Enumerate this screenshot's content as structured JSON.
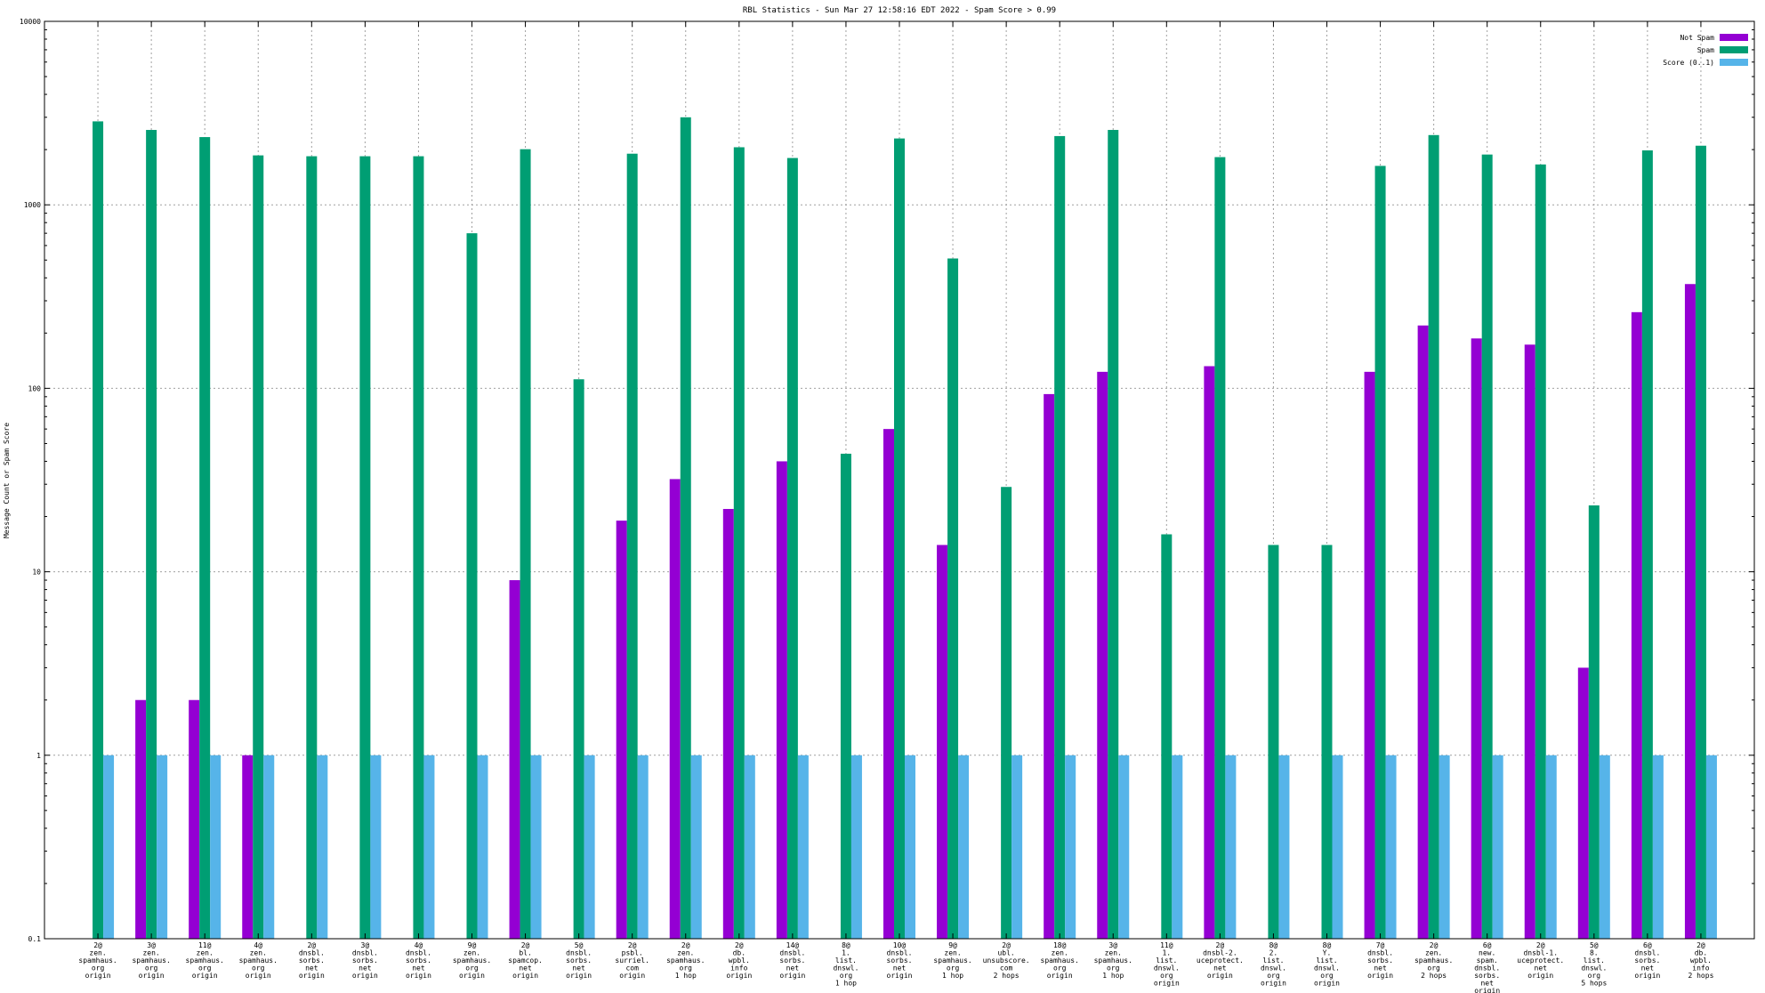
{
  "chart_data": {
    "type": "bar",
    "title": "RBL Statistics - Sun Mar 27 12:58:16 EDT 2022 - Spam Score > 0.99",
    "xlabel": "",
    "ylabel": "Message Count or Spam Score",
    "y_scale": "log",
    "ylim": [
      0.1,
      10000
    ],
    "y_ticks": [
      "0.1",
      "1",
      "10",
      "100",
      "1000",
      "10000"
    ],
    "grid": true,
    "legend_position": "top-right",
    "categories": [
      [
        "2@",
        "zen.",
        "spamhaus.",
        "org",
        "origin"
      ],
      [
        "3@",
        "zen.",
        "spamhaus.",
        "org",
        "origin"
      ],
      [
        "11@",
        "zen.",
        "spamhaus.",
        "org",
        "origin"
      ],
      [
        "4@",
        "zen.",
        "spamhaus.",
        "org",
        "origin"
      ],
      [
        "2@",
        "dnsbl.",
        "sorbs.",
        "net",
        "origin"
      ],
      [
        "3@",
        "dnsbl.",
        "sorbs.",
        "net",
        "origin"
      ],
      [
        "4@",
        "dnsbl.",
        "sorbs.",
        "net",
        "origin"
      ],
      [
        "9@",
        "zen.",
        "spamhaus.",
        "org",
        "origin"
      ],
      [
        "2@",
        "bl.",
        "spamcop.",
        "net",
        "origin"
      ],
      [
        "5@",
        "dnsbl.",
        "sorbs.",
        "net",
        "origin"
      ],
      [
        "2@",
        "psbl.",
        "surriel.",
        "com",
        "origin"
      ],
      [
        "2@",
        "zen.",
        "spamhaus.",
        "org",
        "1 hop"
      ],
      [
        "2@",
        "db.",
        "wpbl.",
        "info",
        "origin"
      ],
      [
        "14@",
        "dnsbl.",
        "sorbs.",
        "net",
        "origin"
      ],
      [
        "8@",
        "1.",
        "list.",
        "dnswl.",
        "org",
        "1 hop"
      ],
      [
        "10@",
        "dnsbl.",
        "sorbs.",
        "net",
        "origin"
      ],
      [
        "9@",
        "zen.",
        "spamhaus.",
        "org",
        "1 hop"
      ],
      [
        "2@",
        "ubl.",
        "unsubscore.",
        "com",
        "2 hops"
      ],
      [
        "18@",
        "zen.",
        "spamhaus.",
        "org",
        "origin"
      ],
      [
        "3@",
        "zen.",
        "spamhaus.",
        "org",
        "1 hop"
      ],
      [
        "11@",
        "1.",
        "list.",
        "dnswl.",
        "org",
        "origin"
      ],
      [
        "2@",
        "dnsbl-2.",
        "uceprotect.",
        "net",
        "origin"
      ],
      [
        "8@",
        "2.",
        "list.",
        "dnswl.",
        "org",
        "origin"
      ],
      [
        "8@",
        "Y.",
        "list.",
        "dnswl.",
        "org",
        "origin"
      ],
      [
        "7@",
        "dnsbl.",
        "sorbs.",
        "net",
        "origin"
      ],
      [
        "2@",
        "zen.",
        "spamhaus.",
        "org",
        "2 hops"
      ],
      [
        "6@",
        "new.",
        "spam.",
        "dnsbl.",
        "sorbs.",
        "net",
        "origin"
      ],
      [
        "2@",
        "dnsbl-1.",
        "uceprotect.",
        "net",
        "origin"
      ],
      [
        "5@",
        "8.",
        "list.",
        "dnswl.",
        "org",
        "5 hops"
      ],
      [
        "6@",
        "dnsbl.",
        "sorbs.",
        "net",
        "origin"
      ],
      [
        "2@",
        "db.",
        "wpbl.",
        "info",
        "2 hops"
      ]
    ],
    "series": [
      {
        "name": "Not Spam",
        "color": "#9400d3",
        "values": [
          0,
          2,
          2,
          1,
          0,
          0,
          0,
          0,
          9,
          0,
          19,
          32,
          22,
          40,
          0,
          60,
          14,
          0,
          93,
          123,
          0,
          132,
          0,
          0,
          123,
          220,
          187,
          173,
          3,
          260,
          370
        ]
      },
      {
        "name": "Spam",
        "color": "#009e73",
        "values": [
          2850,
          2560,
          2340,
          1860,
          1840,
          1840,
          1840,
          700,
          2010,
          112,
          1900,
          3000,
          2060,
          1800,
          44,
          2300,
          510,
          29,
          2370,
          2560,
          16,
          1820,
          14,
          14,
          1630,
          2400,
          1880,
          1660,
          23,
          1980,
          2100
        ]
      },
      {
        "name": "Score (0..1)",
        "color": "#56b4e9",
        "values": [
          1,
          1,
          1,
          1,
          1,
          1,
          1,
          1,
          1,
          1,
          1,
          1,
          1,
          1,
          1,
          1,
          1,
          1,
          1,
          1,
          1,
          1,
          1,
          1,
          1,
          1,
          1,
          1,
          1,
          1,
          1
        ]
      }
    ]
  }
}
